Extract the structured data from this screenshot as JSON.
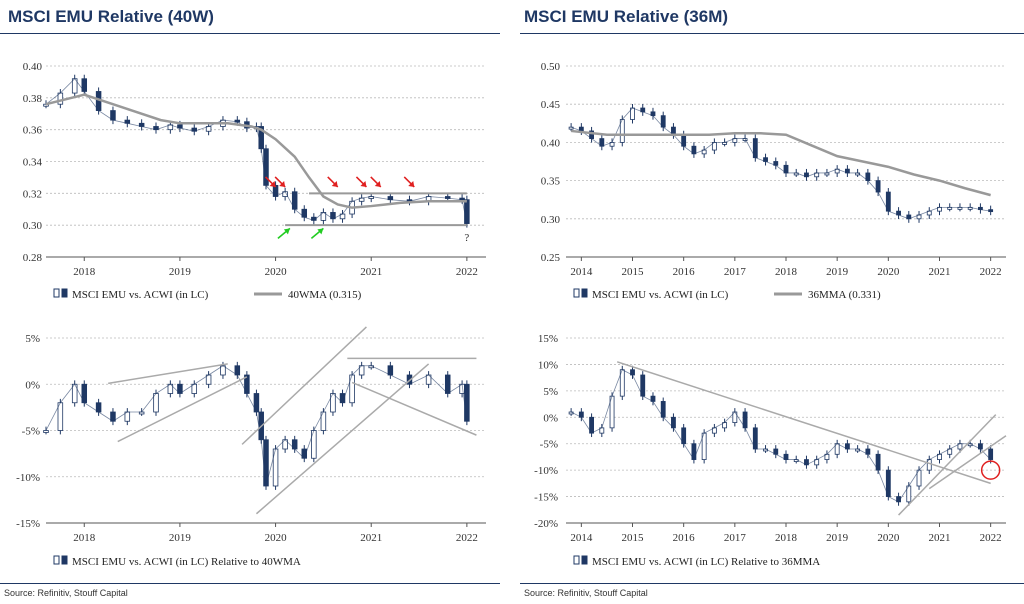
{
  "left_title": "MSCI EMU Relative (40W)",
  "right_title": "MSCI EMU Relative (36M)",
  "left_source": "Source: Refinitiv, Stouff Capital",
  "right_source": "Source: Refinitiv, Stouff Capital",
  "chart_data": [
    {
      "id": "tl",
      "type": "line",
      "title": "MSCI EMU Relative (40W)",
      "ylim": [
        0.28,
        0.4
      ],
      "yticks": [
        0.28,
        0.3,
        0.32,
        0.34,
        0.36,
        0.38,
        0.4
      ],
      "ytick_labels": [
        "0.28",
        "0.30",
        "0.32",
        "0.34",
        "0.36",
        "0.38",
        "0.40"
      ],
      "xlim": [
        2017.6,
        2022.2
      ],
      "xticks": [
        2018.0,
        2019.0,
        2020.0,
        2021.0,
        2022.0
      ],
      "xtick_labels": [
        "2018",
        "2019",
        "2020",
        "2021",
        "2022"
      ],
      "grid": true,
      "legend_position": "bottom",
      "series": [
        {
          "name": "MSCI EMU vs. ACWI (in LC)",
          "style": "candles",
          "x": [
            2017.6,
            2017.75,
            2017.9,
            2018.0,
            2018.15,
            2018.3,
            2018.45,
            2018.6,
            2018.75,
            2018.9,
            2019.0,
            2019.15,
            2019.3,
            2019.45,
            2019.6,
            2019.7,
            2019.8,
            2019.85,
            2019.9,
            2020.0,
            2020.1,
            2020.2,
            2020.3,
            2020.4,
            2020.5,
            2020.6,
            2020.7,
            2020.8,
            2020.9,
            2021.0,
            2021.2,
            2021.4,
            2021.6,
            2021.8,
            2021.95,
            2022.0
          ],
          "values": [
            0.376,
            0.383,
            0.392,
            0.384,
            0.372,
            0.366,
            0.364,
            0.362,
            0.36,
            0.363,
            0.361,
            0.359,
            0.362,
            0.366,
            0.365,
            0.361,
            0.362,
            0.348,
            0.325,
            0.318,
            0.321,
            0.31,
            0.305,
            0.303,
            0.308,
            0.304,
            0.307,
            0.315,
            0.317,
            0.318,
            0.316,
            0.315,
            0.318,
            0.317,
            0.316,
            0.301
          ]
        },
        {
          "name": "40WMA (0.315)",
          "style": "line",
          "x": [
            2017.6,
            2018.0,
            2018.5,
            2018.8,
            2019.0,
            2019.3,
            2019.5,
            2019.75,
            2019.85,
            2020.0,
            2020.2,
            2020.35,
            2020.5,
            2020.65,
            2020.8,
            2021.0,
            2021.3,
            2021.6,
            2022.0
          ],
          "values": [
            0.376,
            0.382,
            0.372,
            0.366,
            0.364,
            0.364,
            0.364,
            0.362,
            0.36,
            0.354,
            0.343,
            0.33,
            0.318,
            0.313,
            0.311,
            0.312,
            0.314,
            0.315,
            0.315
          ]
        }
      ],
      "annotations": [
        {
          "type": "hline",
          "y": 0.32,
          "x": [
            2020.35,
            2022.0
          ]
        },
        {
          "type": "hline",
          "y": 0.3,
          "x": [
            2020.1,
            2022.0
          ]
        },
        {
          "type": "text",
          "text": "?",
          "x": 2022.0,
          "y": 0.295
        }
      ]
    },
    {
      "id": "tr",
      "type": "line",
      "title": "MSCI EMU Relative (36M)",
      "ylim": [
        0.25,
        0.5
      ],
      "yticks": [
        0.25,
        0.3,
        0.35,
        0.4,
        0.45,
        0.5
      ],
      "ytick_labels": [
        "0.25",
        "0.30",
        "0.35",
        "0.40",
        "0.45",
        "0.50"
      ],
      "xlim": [
        2013.7,
        2022.3
      ],
      "xticks": [
        2014,
        2015,
        2016,
        2017,
        2018,
        2019,
        2020,
        2021,
        2022
      ],
      "xtick_labels": [
        "2014",
        "2015",
        "2016",
        "2017",
        "2018",
        "2019",
        "2020",
        "2021",
        "2022"
      ],
      "grid": true,
      "legend_position": "bottom",
      "series": [
        {
          "name": "MSCI EMU vs. ACWI (in LC)",
          "style": "candles",
          "x": [
            2013.8,
            2014.0,
            2014.2,
            2014.4,
            2014.6,
            2014.8,
            2015.0,
            2015.2,
            2015.4,
            2015.6,
            2015.8,
            2016.0,
            2016.2,
            2016.4,
            2016.6,
            2016.8,
            2017.0,
            2017.2,
            2017.4,
            2017.6,
            2017.8,
            2018.0,
            2018.2,
            2018.4,
            2018.6,
            2018.8,
            2019.0,
            2019.2,
            2019.4,
            2019.6,
            2019.8,
            2020.0,
            2020.2,
            2020.4,
            2020.6,
            2020.8,
            2021.0,
            2021.2,
            2021.4,
            2021.6,
            2021.8,
            2022.0
          ],
          "values": [
            0.42,
            0.415,
            0.405,
            0.395,
            0.4,
            0.43,
            0.445,
            0.44,
            0.435,
            0.42,
            0.41,
            0.395,
            0.385,
            0.39,
            0.4,
            0.4,
            0.405,
            0.405,
            0.38,
            0.375,
            0.37,
            0.36,
            0.36,
            0.355,
            0.36,
            0.36,
            0.365,
            0.36,
            0.36,
            0.35,
            0.335,
            0.31,
            0.305,
            0.3,
            0.305,
            0.31,
            0.315,
            0.315,
            0.315,
            0.315,
            0.312,
            0.31
          ]
        },
        {
          "name": "36MMA (0.331)",
          "style": "line",
          "x": [
            2013.8,
            2014.5,
            2015.0,
            2015.5,
            2016.0,
            2016.5,
            2017.0,
            2017.5,
            2018.0,
            2018.5,
            2019.0,
            2019.5,
            2020.0,
            2020.5,
            2021.0,
            2021.5,
            2022.0
          ],
          "values": [
            0.415,
            0.41,
            0.41,
            0.41,
            0.41,
            0.41,
            0.412,
            0.412,
            0.41,
            0.396,
            0.382,
            0.375,
            0.368,
            0.358,
            0.35,
            0.34,
            0.331
          ]
        }
      ]
    },
    {
      "id": "bl",
      "type": "line",
      "ylim": [
        -15,
        5
      ],
      "yticks": [
        -15,
        -10,
        -5,
        0,
        5
      ],
      "ytick_labels": [
        "-15%",
        "-10%",
        "-5%",
        "0%",
        "5%"
      ],
      "xlim": [
        2017.6,
        2022.2
      ],
      "xticks": [
        2018.0,
        2019.0,
        2020.0,
        2021.0,
        2022.0
      ],
      "xtick_labels": [
        "2018",
        "2019",
        "2020",
        "2021",
        "2022"
      ],
      "grid": true,
      "legend_position": "bottom",
      "series": [
        {
          "name": "MSCI EMU vs. ACWI (in LC) Relative to 40WMA",
          "style": "candles",
          "x": [
            2017.6,
            2017.75,
            2017.9,
            2018.0,
            2018.15,
            2018.3,
            2018.45,
            2018.6,
            2018.75,
            2018.9,
            2019.0,
            2019.15,
            2019.3,
            2019.45,
            2019.6,
            2019.7,
            2019.8,
            2019.85,
            2019.9,
            2020.0,
            2020.1,
            2020.2,
            2020.3,
            2020.4,
            2020.5,
            2020.6,
            2020.7,
            2020.8,
            2020.9,
            2021.0,
            2021.2,
            2021.4,
            2021.6,
            2021.8,
            2021.95,
            2022.0
          ],
          "values": [
            -5,
            -2,
            0,
            -2,
            -3,
            -4,
            -3,
            -3,
            -1,
            0,
            -1,
            0,
            1,
            2,
            1,
            -1,
            -3,
            -6,
            -11,
            -7,
            -6,
            -7,
            -8,
            -5,
            -3,
            -1,
            -2,
            1,
            2,
            2,
            1,
            0,
            1,
            -1,
            0,
            -4
          ]
        }
      ],
      "annotations": [
        {
          "type": "line",
          "x1": 2018.25,
          "y1": 0.1,
          "x2": 2019.5,
          "y2": 2.2
        },
        {
          "type": "line",
          "x1": 2018.35,
          "y1": -6.2,
          "x2": 2019.7,
          "y2": 0.8
        },
        {
          "type": "line",
          "x1": 2019.65,
          "y1": -6.5,
          "x2": 2020.95,
          "y2": 6.2
        },
        {
          "type": "line",
          "x1": 2019.8,
          "y1": -14,
          "x2": 2021.6,
          "y2": 2.2
        },
        {
          "type": "line",
          "x1": 2020.75,
          "y1": 2.8,
          "x2": 2022.1,
          "y2": 2.8
        },
        {
          "type": "line",
          "x1": 2020.8,
          "y1": 0.2,
          "x2": 2022.1,
          "y2": -5.5
        }
      ]
    },
    {
      "id": "br",
      "type": "line",
      "ylim": [
        -20,
        15
      ],
      "yticks": [
        -20,
        -15,
        -10,
        -5,
        0,
        5,
        10,
        15
      ],
      "ytick_labels": [
        "-20%",
        "-15%",
        "-10%",
        "-5%",
        "0%",
        "5%",
        "10%",
        "15%"
      ],
      "xlim": [
        2013.7,
        2022.3
      ],
      "xticks": [
        2014,
        2015,
        2016,
        2017,
        2018,
        2019,
        2020,
        2021,
        2022
      ],
      "xtick_labels": [
        "2014",
        "2015",
        "2016",
        "2017",
        "2018",
        "2019",
        "2020",
        "2021",
        "2022"
      ],
      "grid": true,
      "legend_position": "bottom",
      "series": [
        {
          "name": "MSCI EMU vs. ACWI (in LC) Relative to 36MMA",
          "style": "candles",
          "x": [
            2013.8,
            2014.0,
            2014.2,
            2014.4,
            2014.6,
            2014.8,
            2015.0,
            2015.2,
            2015.4,
            2015.6,
            2015.8,
            2016.0,
            2016.2,
            2016.4,
            2016.6,
            2016.8,
            2017.0,
            2017.2,
            2017.4,
            2017.6,
            2017.8,
            2018.0,
            2018.2,
            2018.4,
            2018.6,
            2018.8,
            2019.0,
            2019.2,
            2019.4,
            2019.6,
            2019.8,
            2020.0,
            2020.2,
            2020.4,
            2020.6,
            2020.8,
            2021.0,
            2021.2,
            2021.4,
            2021.6,
            2021.8,
            2022.0
          ],
          "values": [
            1,
            0,
            -3,
            -2,
            4,
            9,
            8,
            4,
            3,
            0,
            -2,
            -5,
            -8,
            -3,
            -2,
            -1,
            1,
            -2,
            -6,
            -6,
            -7,
            -8,
            -8,
            -9,
            -8,
            -7,
            -5,
            -6,
            -6,
            -7,
            -10,
            -15,
            -16,
            -13,
            -10,
            -8,
            -7,
            -6,
            -5,
            -5,
            -6,
            -8
          ]
        }
      ],
      "annotations": [
        {
          "type": "line",
          "x1": 2014.7,
          "y1": 10.5,
          "x2": 2022.0,
          "y2": -12.5
        },
        {
          "type": "line",
          "x1": 2020.2,
          "y1": -18.5,
          "x2": 2022.1,
          "y2": 0.5
        },
        {
          "type": "line",
          "x1": 2020.8,
          "y1": -13.5,
          "x2": 2022.3,
          "y2": -3.5
        }
      ]
    }
  ],
  "colors": {
    "title": "#1f3864",
    "candle_up": "#ffffff",
    "candle_down": "#1f3864",
    "ma_line": "#999999",
    "trend_line": "#aaaaaa",
    "grid": "#bbbbbb",
    "red_arrow": "#e02020",
    "green_arrow": "#22cc22",
    "red_circle": "#e02020"
  }
}
